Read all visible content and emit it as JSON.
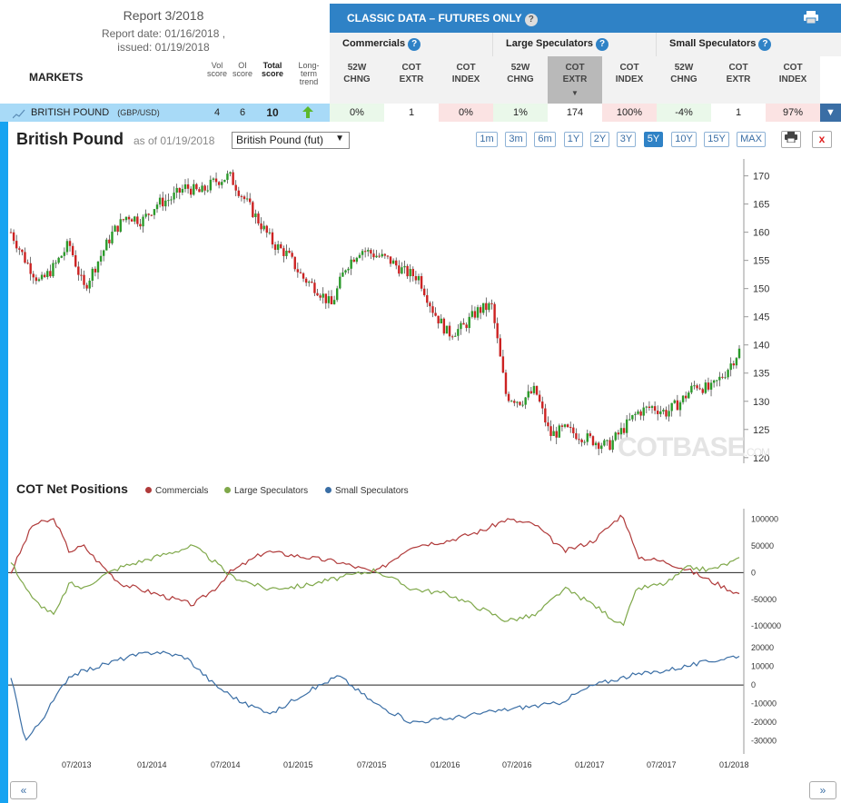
{
  "report": {
    "title": "Report 3/2018",
    "report_date": "Report date: 01/16/2018 ,",
    "issued": "issued: 01/19/2018"
  },
  "columns": {
    "markets": "MARKETS",
    "vol": [
      "Vol",
      "score"
    ],
    "oi": [
      "OI",
      "score"
    ],
    "total": [
      "Total",
      "score"
    ],
    "trend": [
      "Long-",
      "term",
      "trend"
    ]
  },
  "classic": {
    "title": "CLASSIC DATA – FUTURES ONLY",
    "help": "?",
    "print_icon": "print-icon"
  },
  "groups": [
    {
      "label": "Commercials",
      "help": "?"
    },
    {
      "label": "Large Speculators",
      "help": "?"
    },
    {
      "label": "Small Speculators",
      "help": "?"
    }
  ],
  "subheads": [
    [
      "52W",
      "CHNG"
    ],
    [
      "COT",
      "EXTR"
    ],
    [
      "COT",
      "INDEX"
    ],
    [
      "52W",
      "CHNG"
    ],
    [
      "COT",
      "EXTR"
    ],
    [
      "COT",
      "INDEX"
    ],
    [
      "52W",
      "CHNG"
    ],
    [
      "COT",
      "EXTR"
    ],
    [
      "COT",
      "INDEX"
    ]
  ],
  "row": {
    "name": "BRITISH POUND",
    "code": "(GBP/USD)",
    "vol_score": "4",
    "oi_score": "6",
    "total_score": "10",
    "trend_icon": "arrow-up-icon",
    "values": [
      "0%",
      "1",
      "0%",
      "1%",
      "174",
      "100%",
      "-4%",
      "1",
      "97%"
    ],
    "cell_colors": [
      "#eaf8ea",
      "#ffffff",
      "#fbe3e3",
      "#eaf8ea",
      "#ffffff",
      "#fbe3e3",
      "#eaf8ea",
      "#ffffff",
      "#fbe3e3"
    ]
  },
  "chart_header": {
    "title": "British Pound",
    "asof": "as of 01/19/2018",
    "select": "British Pound (fut)",
    "ranges": [
      "1m",
      "3m",
      "6m",
      "1Y",
      "2Y",
      "3Y",
      "5Y",
      "10Y",
      "15Y",
      "MAX"
    ],
    "active_range": "5Y",
    "print": "⎙",
    "close": "x"
  },
  "watermark": {
    "big": "COT",
    "mid": "BASE",
    "small": ".COM"
  },
  "cot": {
    "title": "COT Net Positions",
    "legend": [
      {
        "name": "Commercials",
        "color": "#b03a3a"
      },
      {
        "name": "Large Speculators",
        "color": "#7fa84a"
      },
      {
        "name": "Small Speculators",
        "color": "#3a6ea5"
      }
    ]
  },
  "nav": {
    "prev": "«",
    "next": "»"
  },
  "chart_data": [
    {
      "type": "candlestick",
      "title": "British Pound",
      "y_ticks": [
        120,
        125,
        130,
        135,
        140,
        145,
        150,
        155,
        160,
        165,
        170
      ],
      "ylim": [
        119,
        173
      ],
      "x_ticks": [
        "07/2013",
        "01/2014",
        "07/2014",
        "01/2015",
        "07/2015",
        "01/2016",
        "07/2016",
        "01/2017",
        "07/2017",
        "01/2018"
      ],
      "close_path": [
        [
          0,
          160
        ],
        [
          0.02,
          155
        ],
        [
          0.04,
          151
        ],
        [
          0.06,
          154
        ],
        [
          0.08,
          158
        ],
        [
          0.1,
          150
        ],
        [
          0.12,
          155
        ],
        [
          0.14,
          160
        ],
        [
          0.16,
          163
        ],
        [
          0.18,
          162
        ],
        [
          0.2,
          165
        ],
        [
          0.22,
          166
        ],
        [
          0.24,
          168
        ],
        [
          0.26,
          167
        ],
        [
          0.28,
          169
        ],
        [
          0.3,
          170
        ],
        [
          0.32,
          166
        ],
        [
          0.34,
          162
        ],
        [
          0.36,
          158
        ],
        [
          0.38,
          156
        ],
        [
          0.4,
          152
        ],
        [
          0.42,
          150
        ],
        [
          0.44,
          147
        ],
        [
          0.46,
          154
        ],
        [
          0.48,
          157
        ],
        [
          0.5,
          156
        ],
        [
          0.52,
          155
        ],
        [
          0.54,
          153
        ],
        [
          0.56,
          152
        ],
        [
          0.58,
          146
        ],
        [
          0.6,
          142
        ],
        [
          0.62,
          143
        ],
        [
          0.64,
          146
        ],
        [
          0.66,
          147
        ],
        [
          0.68,
          131
        ],
        [
          0.7,
          130
        ],
        [
          0.72,
          132
        ],
        [
          0.74,
          124
        ],
        [
          0.76,
          125
        ],
        [
          0.78,
          124
        ],
        [
          0.8,
          123
        ],
        [
          0.82,
          122
        ],
        [
          0.84,
          125
        ],
        [
          0.86,
          128
        ],
        [
          0.88,
          129
        ],
        [
          0.9,
          128
        ],
        [
          0.92,
          130
        ],
        [
          0.94,
          133
        ],
        [
          0.96,
          132
        ],
        [
          0.98,
          135
        ],
        [
          1.0,
          139
        ]
      ]
    },
    {
      "type": "line",
      "title": "COT Net Positions",
      "y_ticks": [
        -100000,
        -50000,
        0,
        50000,
        100000
      ],
      "ylim": [
        -110000,
        120000
      ],
      "series": [
        {
          "name": "Commercials",
          "color": "#b03a3a",
          "points": [
            [
              0,
              0
            ],
            [
              0.03,
              90000
            ],
            [
              0.06,
              100000
            ],
            [
              0.08,
              40000
            ],
            [
              0.1,
              50000
            ],
            [
              0.12,
              20000
            ],
            [
              0.15,
              -20000
            ],
            [
              0.2,
              -40000
            ],
            [
              0.25,
              -60000
            ],
            [
              0.28,
              -30000
            ],
            [
              0.3,
              0
            ],
            [
              0.35,
              40000
            ],
            [
              0.4,
              30000
            ],
            [
              0.45,
              20000
            ],
            [
              0.5,
              0
            ],
            [
              0.55,
              50000
            ],
            [
              0.6,
              60000
            ],
            [
              0.65,
              80000
            ],
            [
              0.68,
              100000
            ],
            [
              0.72,
              90000
            ],
            [
              0.76,
              40000
            ],
            [
              0.8,
              60000
            ],
            [
              0.84,
              110000
            ],
            [
              0.86,
              30000
            ],
            [
              0.9,
              20000
            ],
            [
              0.93,
              5000
            ],
            [
              0.96,
              -15000
            ],
            [
              1.0,
              -40000
            ]
          ]
        },
        {
          "name": "Large Speculators",
          "color": "#7fa84a",
          "points": [
            [
              0,
              20000
            ],
            [
              0.03,
              -50000
            ],
            [
              0.06,
              -80000
            ],
            [
              0.08,
              -20000
            ],
            [
              0.1,
              -30000
            ],
            [
              0.12,
              -10000
            ],
            [
              0.15,
              10000
            ],
            [
              0.2,
              30000
            ],
            [
              0.25,
              50000
            ],
            [
              0.28,
              20000
            ],
            [
              0.3,
              -5000
            ],
            [
              0.35,
              -30000
            ],
            [
              0.4,
              -25000
            ],
            [
              0.45,
              -10000
            ],
            [
              0.5,
              5000
            ],
            [
              0.55,
              -30000
            ],
            [
              0.6,
              -40000
            ],
            [
              0.65,
              -70000
            ],
            [
              0.68,
              -90000
            ],
            [
              0.72,
              -80000
            ],
            [
              0.76,
              -30000
            ],
            [
              0.8,
              -60000
            ],
            [
              0.84,
              -100000
            ],
            [
              0.86,
              -30000
            ],
            [
              0.9,
              -20000
            ],
            [
              0.93,
              10000
            ],
            [
              0.96,
              5000
            ],
            [
              1.0,
              25000
            ]
          ]
        },
        {
          "name": "Small Speculators",
          "color": "#3a6ea5",
          "scale": "secondary",
          "y_ticks": [
            -30000,
            -20000,
            -10000,
            0,
            10000,
            20000
          ],
          "points": [
            [
              0,
              5000
            ],
            [
              0.02,
              -30000
            ],
            [
              0.04,
              -20000
            ],
            [
              0.08,
              5000
            ],
            [
              0.12,
              10000
            ],
            [
              0.16,
              15000
            ],
            [
              0.2,
              18000
            ],
            [
              0.24,
              15000
            ],
            [
              0.28,
              0
            ],
            [
              0.32,
              -10000
            ],
            [
              0.36,
              -15000
            ],
            [
              0.4,
              -5000
            ],
            [
              0.45,
              5000
            ],
            [
              0.5,
              -10000
            ],
            [
              0.55,
              -20000
            ],
            [
              0.6,
              -18000
            ],
            [
              0.65,
              -15000
            ],
            [
              0.7,
              -12000
            ],
            [
              0.75,
              -10000
            ],
            [
              0.8,
              0
            ],
            [
              0.85,
              5000
            ],
            [
              0.9,
              8000
            ],
            [
              0.95,
              12000
            ],
            [
              1.0,
              16000
            ]
          ]
        }
      ]
    }
  ]
}
